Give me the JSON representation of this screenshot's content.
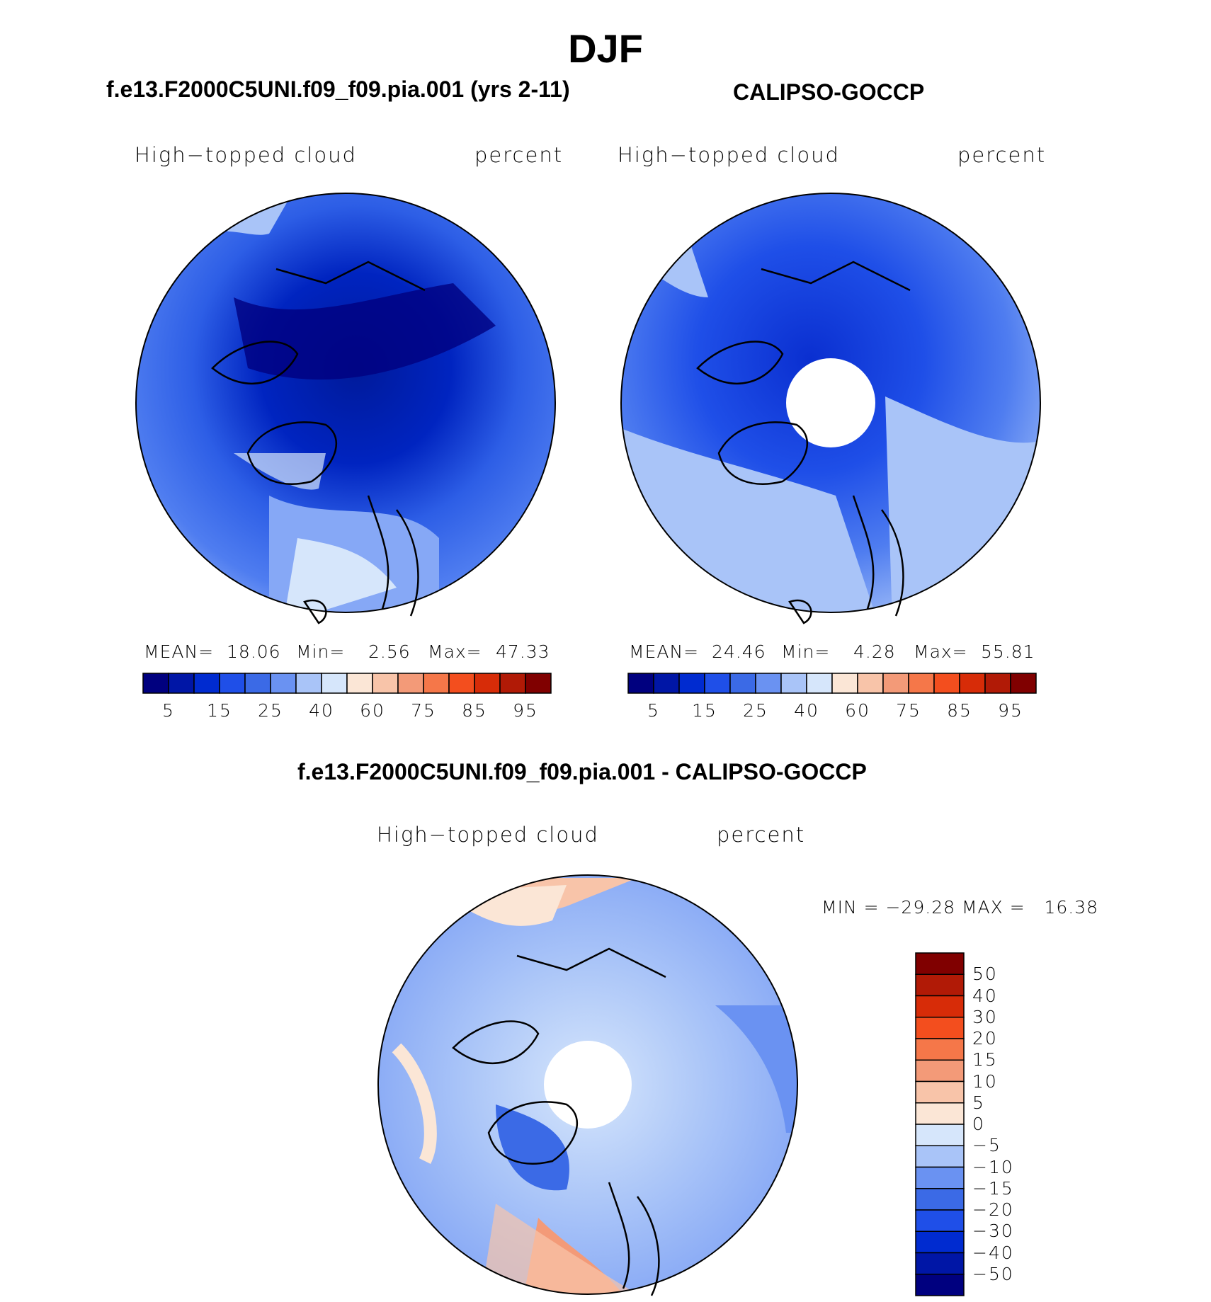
{
  "title": "DJF",
  "panels": {
    "model": {
      "header": "f.e13.F2000C5UNI.f09_f09.pia.001 (yrs 2-11)",
      "variable": "High−topped cloud",
      "units": "percent",
      "mean_label": "MEAN=",
      "mean": "18.06",
      "min_label": "Min=",
      "min": "2.56",
      "max_label": "Max=",
      "max": "47.33"
    },
    "obs": {
      "header": "CALIPSO-GOCCP",
      "variable": "High−topped cloud",
      "units": "percent",
      "mean_label": "MEAN=",
      "mean": "24.46",
      "min_label": "Min=",
      "min": "4.28",
      "max_label": "Max=",
      "max": "55.81"
    },
    "diff": {
      "header": "f.e13.F2000C5UNI.f09_f09.pia.001 - CALIPSO-GOCCP",
      "variable": "High−topped cloud",
      "units": "percent",
      "minmax_text": "MIN = −29.28 MAX =   16.38"
    }
  },
  "chart_data": [
    {
      "type": "heatmap",
      "projection": "north-polar-stereographic",
      "title": "f.e13.F2000C5UNI.f09_f09.pia.001 (yrs 2-11)",
      "variable": "High-topped cloud",
      "units": "percent",
      "stats": {
        "mean": 18.06,
        "min": 2.56,
        "max": 47.33
      },
      "colorbar": {
        "levels": [
          5,
          10,
          15,
          20,
          25,
          30,
          40,
          50,
          60,
          70,
          75,
          80,
          85,
          90,
          95
        ],
        "tick_labels": [
          "5",
          "15",
          "25",
          "40",
          "60",
          "75",
          "85",
          "95"
        ],
        "colors": [
          "#00007f",
          "#0016a6",
          "#002bd0",
          "#1f4fe8",
          "#3b6ae6",
          "#6a92f2",
          "#a9c4f8",
          "#d6e6fb",
          "#fbe6d6",
          "#f8c4a9",
          "#f39a78",
          "#f57749",
          "#f34e1e",
          "#d72c08",
          "#b11a06",
          "#800000"
        ]
      }
    },
    {
      "type": "heatmap",
      "projection": "north-polar-stereographic",
      "title": "CALIPSO-GOCCP",
      "variable": "High-topped cloud",
      "units": "percent",
      "stats": {
        "mean": 24.46,
        "min": 4.28,
        "max": 55.81
      },
      "colorbar": {
        "levels": [
          5,
          10,
          15,
          20,
          25,
          30,
          40,
          50,
          60,
          70,
          75,
          80,
          85,
          90,
          95
        ],
        "tick_labels": [
          "5",
          "15",
          "25",
          "40",
          "60",
          "75",
          "85",
          "95"
        ],
        "colors": [
          "#00007f",
          "#0016a6",
          "#002bd0",
          "#1f4fe8",
          "#3b6ae6",
          "#6a92f2",
          "#a9c4f8",
          "#d6e6fb",
          "#fbe6d6",
          "#f8c4a9",
          "#f39a78",
          "#f57749",
          "#f34e1e",
          "#d72c08",
          "#b11a06",
          "#800000"
        ]
      }
    },
    {
      "type": "heatmap",
      "projection": "north-polar-stereographic",
      "title": "f.e13.F2000C5UNI.f09_f09.pia.001 - CALIPSO-GOCCP",
      "variable": "High-topped cloud",
      "units": "percent",
      "stats": {
        "min": -29.28,
        "max": 16.38
      },
      "colorbar": {
        "levels": [
          50,
          40,
          30,
          20,
          15,
          10,
          5,
          0,
          -5,
          -10,
          -15,
          -20,
          -30,
          -40,
          -50
        ],
        "tick_labels": [
          "50",
          "40",
          "30",
          "20",
          "15",
          "10",
          "5",
          "0",
          "−5",
          "−10",
          "−15",
          "−20",
          "−30",
          "−40",
          "−50"
        ],
        "colors_top_to_bottom": [
          "#800000",
          "#b11a06",
          "#d72c08",
          "#f34e1e",
          "#f57749",
          "#f39a78",
          "#f8c4a9",
          "#fbe6d6",
          "#d6e6fb",
          "#a9c4f8",
          "#6a92f2",
          "#3b6ae6",
          "#1f4fe8",
          "#002bd0",
          "#0016a6",
          "#00007f"
        ]
      }
    }
  ]
}
